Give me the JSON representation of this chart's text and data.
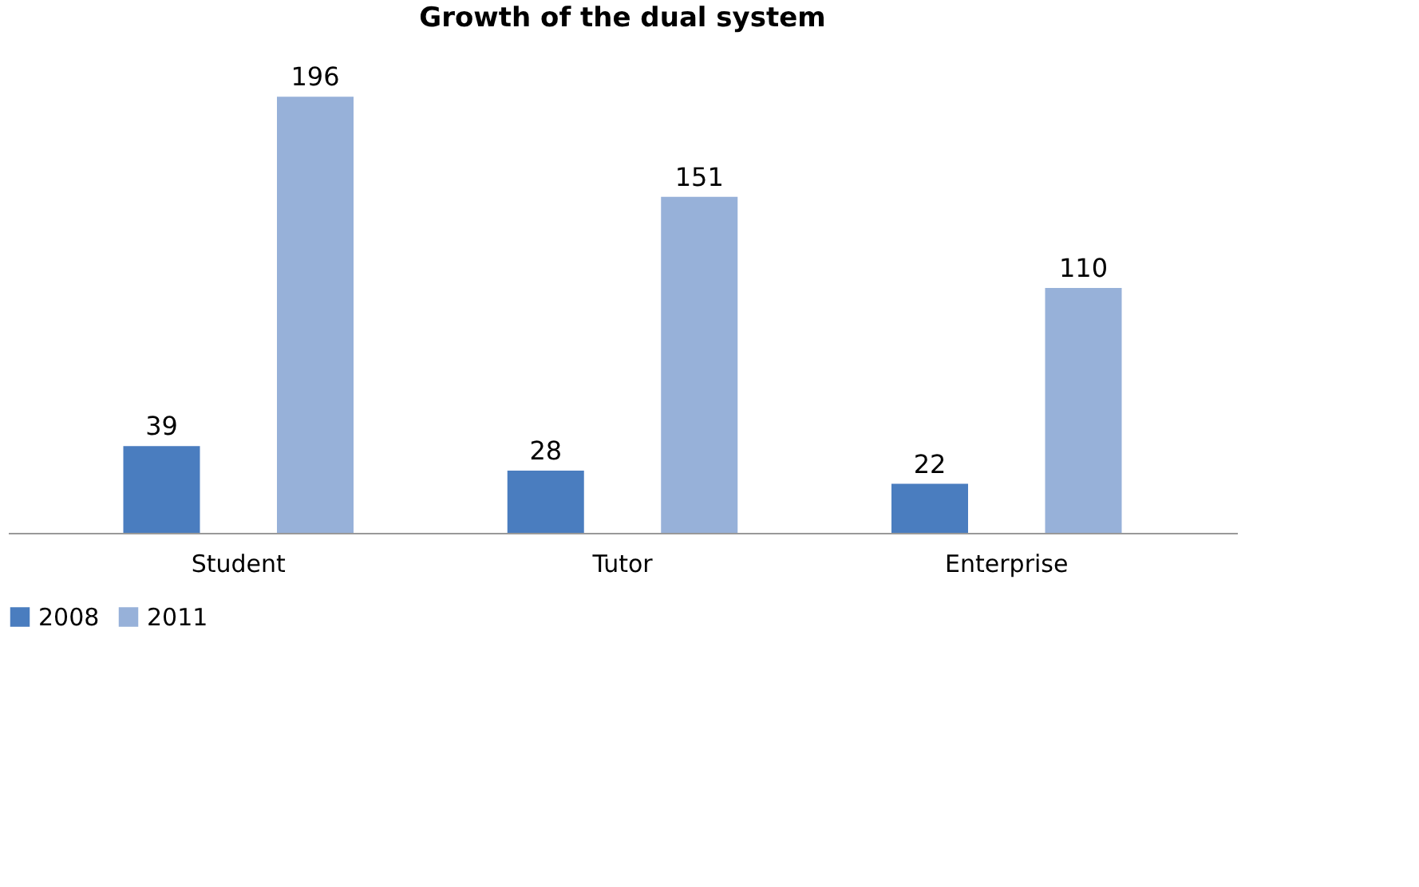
{
  "chart_data": {
    "type": "bar",
    "title": "Growth of the dual system",
    "categories": [
      "Student",
      "Tutor",
      "Enterprise"
    ],
    "series": [
      {
        "name": "2008",
        "color": "#4a7dbf",
        "values": [
          39,
          28,
          22
        ]
      },
      {
        "name": "2011",
        "color": "#97b1d9",
        "values": [
          196,
          151,
          110
        ]
      }
    ],
    "data_labels": true,
    "legend": "bottom",
    "tick_labels": "x",
    "grid": false
  }
}
